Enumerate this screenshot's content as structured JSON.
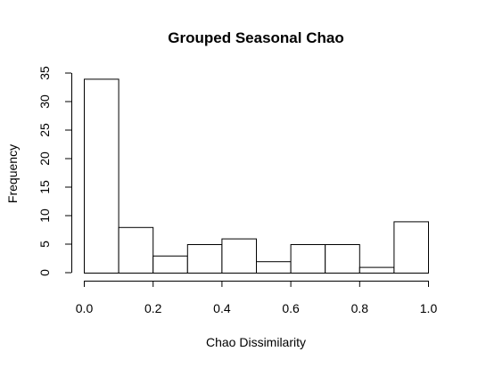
{
  "chart_data": {
    "type": "bar",
    "subtype": "histogram",
    "title": "Grouped Seasonal Chao",
    "xlabel": "Chao Dissimilarity",
    "ylabel": "Frequency",
    "bins": [
      {
        "start": 0.0,
        "end": 0.1,
        "count": 34
      },
      {
        "start": 0.1,
        "end": 0.2,
        "count": 8
      },
      {
        "start": 0.2,
        "end": 0.3,
        "count": 3
      },
      {
        "start": 0.3,
        "end": 0.4,
        "count": 5
      },
      {
        "start": 0.4,
        "end": 0.5,
        "count": 6
      },
      {
        "start": 0.5,
        "end": 0.6,
        "count": 2
      },
      {
        "start": 0.6,
        "end": 0.7,
        "count": 5
      },
      {
        "start": 0.7,
        "end": 0.8,
        "count": 5
      },
      {
        "start": 0.8,
        "end": 0.9,
        "count": 1
      },
      {
        "start": 0.9,
        "end": 1.0,
        "count": 9
      }
    ],
    "xlim": [
      0.0,
      1.0
    ],
    "ylim": [
      0,
      35
    ],
    "xticks": [
      "0.0",
      "0.2",
      "0.4",
      "0.6",
      "0.8",
      "1.0"
    ],
    "yticks": [
      "0",
      "5",
      "10",
      "15",
      "20",
      "25",
      "30",
      "35"
    ],
    "grid": false,
    "bar_fill": "#ffffff",
    "bar_stroke": "#000000"
  }
}
